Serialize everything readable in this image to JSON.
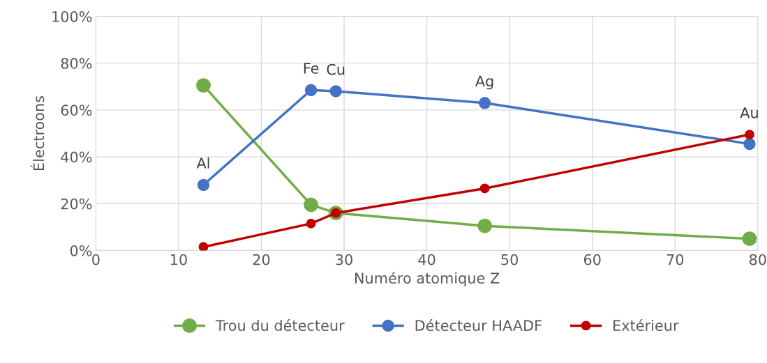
{
  "chart_data": {
    "type": "line",
    "xlabel": "Numéro atomique Z",
    "ylabel": "Électroons",
    "x": [
      13,
      26,
      29,
      47,
      79
    ],
    "series": [
      {
        "name": "Trou du détecteur",
        "color": "#70ad47",
        "values": [
          70.5,
          19.5,
          16,
          10.5,
          5
        ]
      },
      {
        "name": "Détecteur HAADF",
        "color": "#4472c4",
        "values": [
          28,
          68.5,
          68,
          63,
          45.5
        ]
      },
      {
        "name": "Extérieur",
        "color": "#c00000",
        "values": [
          1.5,
          11.5,
          16,
          26.5,
          49.5
        ]
      }
    ],
    "xlim": [
      0,
      80
    ],
    "xticks": [
      0,
      10,
      20,
      30,
      40,
      50,
      60,
      70,
      80
    ],
    "ylim": [
      0,
      100
    ],
    "yticks": [
      {
        "value": 0,
        "label": "0%"
      },
      {
        "value": 20,
        "label": "20%"
      },
      {
        "value": 40,
        "label": "40%"
      },
      {
        "value": 60,
        "label": "60%"
      },
      {
        "value": 80,
        "label": "80%"
      },
      {
        "value": 100,
        "label": "100%"
      }
    ],
    "annotations": [
      {
        "text": "Al",
        "x": 13,
        "y": 28
      },
      {
        "text": "Fe",
        "x": 26,
        "y": 68.5
      },
      {
        "text": "Cu",
        "x": 29,
        "y": 68
      },
      {
        "text": "Ag",
        "x": 47,
        "y": 63
      },
      {
        "text": "Au",
        "x": 79,
        "y": 49.5
      }
    ],
    "grid": true,
    "legend": "bottom",
    "marker": "circle",
    "line_style": "solid"
  }
}
